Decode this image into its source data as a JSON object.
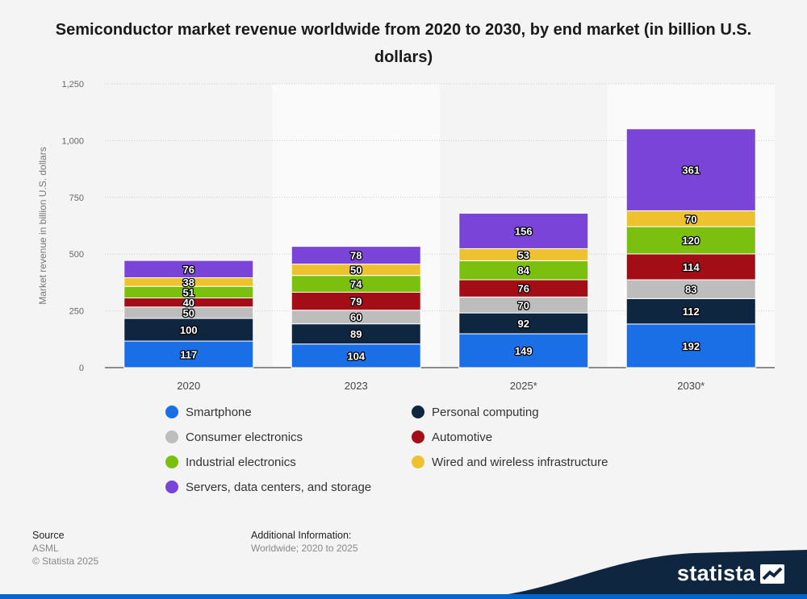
{
  "chart_data": {
    "type": "bar",
    "stacked": true,
    "title": "Semiconductor market revenue worldwide from 2020 to 2030, by end market (in billion U.S. dollars)",
    "xlabel": "",
    "ylabel": "Market revenue in billion U.S. dollars",
    "ylim": [
      0,
      1250
    ],
    "yticks": [
      0,
      250,
      500,
      750,
      1000,
      1250
    ],
    "ytick_labels": [
      "0",
      "250",
      "500",
      "750",
      "1,000",
      "1,250"
    ],
    "grid": true,
    "legend_position": "bottom",
    "categories": [
      "2020",
      "2023",
      "2025*",
      "2030*"
    ],
    "series": [
      {
        "name": "Smartphone",
        "color": "#1a6ee6",
        "values": [
          117,
          104,
          149,
          192
        ]
      },
      {
        "name": "Personal computing",
        "color": "#0f2640",
        "values": [
          100,
          89,
          92,
          112
        ]
      },
      {
        "name": "Consumer electronics",
        "color": "#bdbdbd",
        "values": [
          50,
          60,
          70,
          83
        ]
      },
      {
        "name": "Automotive",
        "color": "#a30e16",
        "values": [
          40,
          79,
          76,
          114
        ]
      },
      {
        "name": "Industrial electronics",
        "color": "#7cc00f",
        "values": [
          51,
          74,
          84,
          120
        ]
      },
      {
        "name": "Wired and wireless infrastructure",
        "color": "#eec22f",
        "values": [
          38,
          50,
          53,
          70
        ]
      },
      {
        "name": "Servers, data centers, and storage",
        "color": "#7b44d8",
        "values": [
          76,
          78,
          156,
          361
        ]
      }
    ]
  },
  "footer": {
    "source_heading": "Source",
    "source_name": "ASML",
    "copyright": "© Statista 2025",
    "additional_heading": "Additional Information:",
    "additional_text": "Worldwide; 2020 to 2025"
  },
  "brand": {
    "name": "statista",
    "color": "#0066cc",
    "dark_color": "#0f2640"
  }
}
